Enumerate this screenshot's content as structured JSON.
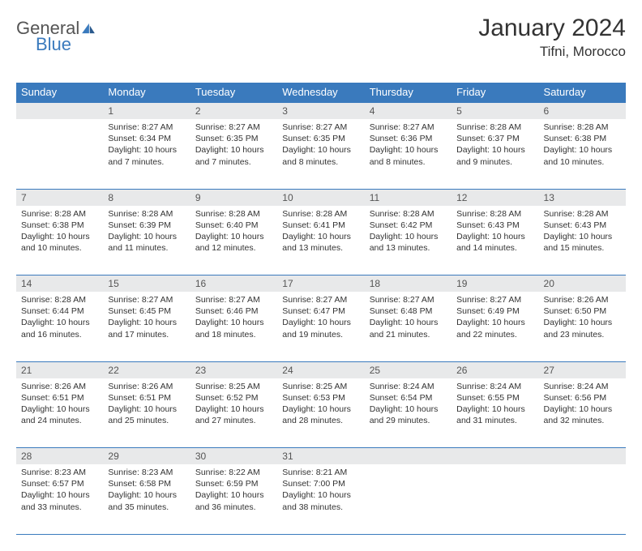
{
  "brand": {
    "part1": "General",
    "part2": "Blue"
  },
  "title": "January 2024",
  "location": "Tifni, Morocco",
  "colors": {
    "header_bg": "#3a7abd",
    "header_text": "#ffffff",
    "daynum_bg": "#e8e9ea",
    "daynum_text": "#555555",
    "body_text": "#333333",
    "rule": "#3a7abd",
    "logo_gray": "#555555",
    "logo_blue": "#3a7abd"
  },
  "weekdays": [
    "Sunday",
    "Monday",
    "Tuesday",
    "Wednesday",
    "Thursday",
    "Friday",
    "Saturday"
  ],
  "weeks": [
    [
      null,
      {
        "n": "1",
        "sr": "8:27 AM",
        "ss": "6:34 PM",
        "dl": "10 hours and 7 minutes."
      },
      {
        "n": "2",
        "sr": "8:27 AM",
        "ss": "6:35 PM",
        "dl": "10 hours and 7 minutes."
      },
      {
        "n": "3",
        "sr": "8:27 AM",
        "ss": "6:35 PM",
        "dl": "10 hours and 8 minutes."
      },
      {
        "n": "4",
        "sr": "8:27 AM",
        "ss": "6:36 PM",
        "dl": "10 hours and 8 minutes."
      },
      {
        "n": "5",
        "sr": "8:28 AM",
        "ss": "6:37 PM",
        "dl": "10 hours and 9 minutes."
      },
      {
        "n": "6",
        "sr": "8:28 AM",
        "ss": "6:38 PM",
        "dl": "10 hours and 10 minutes."
      }
    ],
    [
      {
        "n": "7",
        "sr": "8:28 AM",
        "ss": "6:38 PM",
        "dl": "10 hours and 10 minutes."
      },
      {
        "n": "8",
        "sr": "8:28 AM",
        "ss": "6:39 PM",
        "dl": "10 hours and 11 minutes."
      },
      {
        "n": "9",
        "sr": "8:28 AM",
        "ss": "6:40 PM",
        "dl": "10 hours and 12 minutes."
      },
      {
        "n": "10",
        "sr": "8:28 AM",
        "ss": "6:41 PM",
        "dl": "10 hours and 13 minutes."
      },
      {
        "n": "11",
        "sr": "8:28 AM",
        "ss": "6:42 PM",
        "dl": "10 hours and 13 minutes."
      },
      {
        "n": "12",
        "sr": "8:28 AM",
        "ss": "6:43 PM",
        "dl": "10 hours and 14 minutes."
      },
      {
        "n": "13",
        "sr": "8:28 AM",
        "ss": "6:43 PM",
        "dl": "10 hours and 15 minutes."
      }
    ],
    [
      {
        "n": "14",
        "sr": "8:28 AM",
        "ss": "6:44 PM",
        "dl": "10 hours and 16 minutes."
      },
      {
        "n": "15",
        "sr": "8:27 AM",
        "ss": "6:45 PM",
        "dl": "10 hours and 17 minutes."
      },
      {
        "n": "16",
        "sr": "8:27 AM",
        "ss": "6:46 PM",
        "dl": "10 hours and 18 minutes."
      },
      {
        "n": "17",
        "sr": "8:27 AM",
        "ss": "6:47 PM",
        "dl": "10 hours and 19 minutes."
      },
      {
        "n": "18",
        "sr": "8:27 AM",
        "ss": "6:48 PM",
        "dl": "10 hours and 21 minutes."
      },
      {
        "n": "19",
        "sr": "8:27 AM",
        "ss": "6:49 PM",
        "dl": "10 hours and 22 minutes."
      },
      {
        "n": "20",
        "sr": "8:26 AM",
        "ss": "6:50 PM",
        "dl": "10 hours and 23 minutes."
      }
    ],
    [
      {
        "n": "21",
        "sr": "8:26 AM",
        "ss": "6:51 PM",
        "dl": "10 hours and 24 minutes."
      },
      {
        "n": "22",
        "sr": "8:26 AM",
        "ss": "6:51 PM",
        "dl": "10 hours and 25 minutes."
      },
      {
        "n": "23",
        "sr": "8:25 AM",
        "ss": "6:52 PM",
        "dl": "10 hours and 27 minutes."
      },
      {
        "n": "24",
        "sr": "8:25 AM",
        "ss": "6:53 PM",
        "dl": "10 hours and 28 minutes."
      },
      {
        "n": "25",
        "sr": "8:24 AM",
        "ss": "6:54 PM",
        "dl": "10 hours and 29 minutes."
      },
      {
        "n": "26",
        "sr": "8:24 AM",
        "ss": "6:55 PM",
        "dl": "10 hours and 31 minutes."
      },
      {
        "n": "27",
        "sr": "8:24 AM",
        "ss": "6:56 PM",
        "dl": "10 hours and 32 minutes."
      }
    ],
    [
      {
        "n": "28",
        "sr": "8:23 AM",
        "ss": "6:57 PM",
        "dl": "10 hours and 33 minutes."
      },
      {
        "n": "29",
        "sr": "8:23 AM",
        "ss": "6:58 PM",
        "dl": "10 hours and 35 minutes."
      },
      {
        "n": "30",
        "sr": "8:22 AM",
        "ss": "6:59 PM",
        "dl": "10 hours and 36 minutes."
      },
      {
        "n": "31",
        "sr": "8:21 AM",
        "ss": "7:00 PM",
        "dl": "10 hours and 38 minutes."
      },
      null,
      null,
      null
    ]
  ],
  "labels": {
    "sunrise": "Sunrise:",
    "sunset": "Sunset:",
    "daylight": "Daylight:"
  }
}
